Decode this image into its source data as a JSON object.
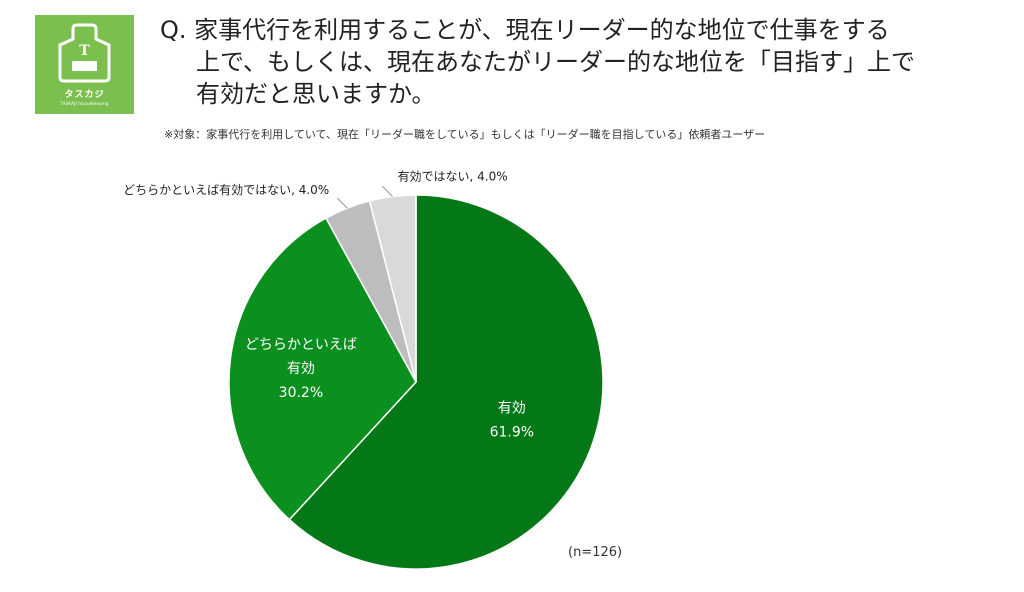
{
  "logo": {
    "icon": "apron-icon",
    "letter": "T",
    "name": "タスカジ",
    "sub": "TASKAJI housekeeping",
    "color": "#7bc04f"
  },
  "question": {
    "line1": "Q. 家事代行を利用することが、現在リーダー的な地位で仕事をする",
    "line2": "上で、もしくは、現在あなたがリーダー的な地位を「目指す」上で",
    "line3": "有効だと思いますか。"
  },
  "note": "※対象：家事代行を利用していて、現在「リーダー職をしている」もしくは「リーダー職を目指している」依頼者ユーザー",
  "sample": "(n=126)",
  "chart_data": {
    "type": "pie",
    "start_angle_deg": 0,
    "direction": "clockwise",
    "slices": [
      {
        "label_lines": [
          "有効"
        ],
        "value": 61.9,
        "value_text": "61.9%",
        "color": "#047816",
        "label_position": "inside"
      },
      {
        "label_lines": [
          "どちらかといえば",
          "有効"
        ],
        "value": 30.2,
        "value_text": "30.2%",
        "color": "#0b8f1f",
        "label_position": "inside"
      },
      {
        "label_lines": [
          "どちらかといえば有効ではない, 4.0%"
        ],
        "value": 4.0,
        "value_text": "4.0%",
        "color": "#bdbdbd",
        "label_position": "outside"
      },
      {
        "label_lines": [
          "有効ではない, 4.0%"
        ],
        "value": 4.0,
        "value_text": "4.0%",
        "color": "#d9d9d9",
        "label_position": "outside"
      }
    ]
  }
}
